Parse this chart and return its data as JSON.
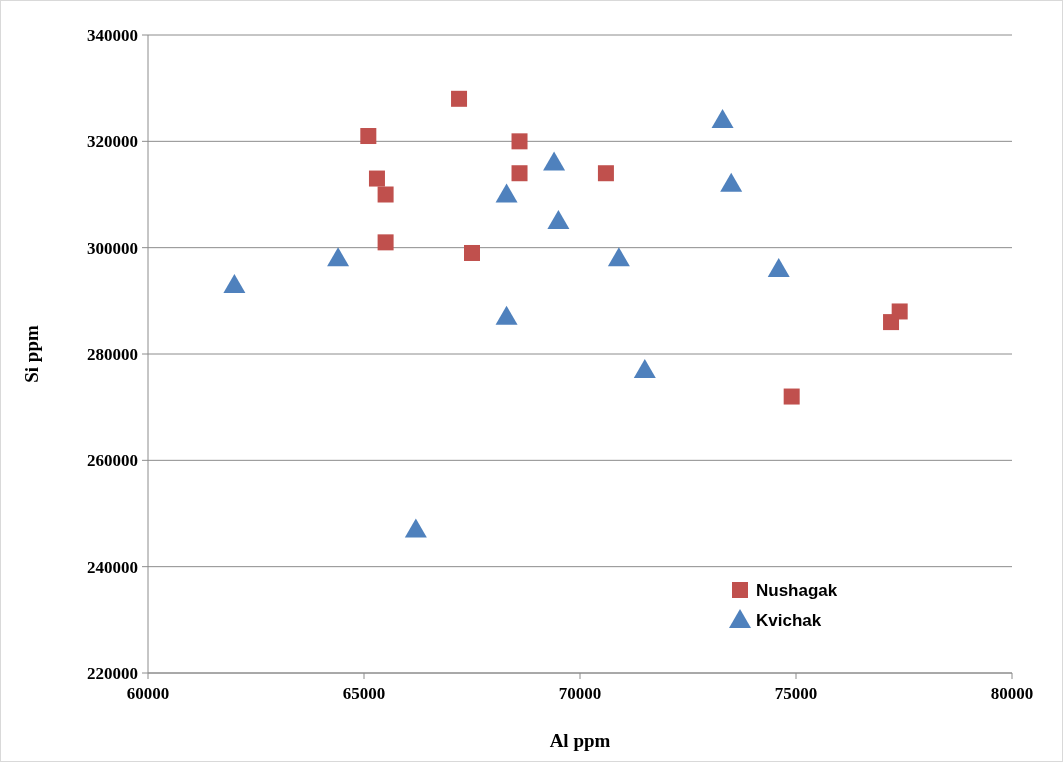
{
  "chart_data": {
    "type": "scatter",
    "xlabel": "Al  ppm",
    "ylabel": "Si  ppm",
    "xlim": [
      60000,
      80000
    ],
    "xticks": [
      60000,
      65000,
      70000,
      75000,
      80000
    ],
    "ylim": [
      220000,
      340000
    ],
    "yticks": [
      220000,
      240000,
      260000,
      280000,
      300000,
      320000,
      340000
    ],
    "grid": "y",
    "legend": "bottom right",
    "series": [
      {
        "name": "Nushagak",
        "color": "#c0504d",
        "marker": "square",
        "x": [
          65100,
          67200,
          65300,
          65500,
          65500,
          67500,
          68600,
          68600,
          70600,
          74900,
          77200,
          77400
        ],
        "values": [
          321000,
          328000,
          313000,
          310000,
          301000,
          299000,
          320000,
          314000,
          314000,
          272000,
          286000,
          288000
        ]
      },
      {
        "name": "Kvichak",
        "color": "#4f81bd",
        "marker": "triangle",
        "x": [
          62000,
          64400,
          66200,
          68300,
          68300,
          69400,
          69500,
          70900,
          71500,
          73300,
          73500,
          74600
        ],
        "values": [
          293000,
          298000,
          247000,
          287000,
          310000,
          316000,
          305000,
          298000,
          277000,
          324000,
          312000,
          296000
        ]
      }
    ]
  }
}
